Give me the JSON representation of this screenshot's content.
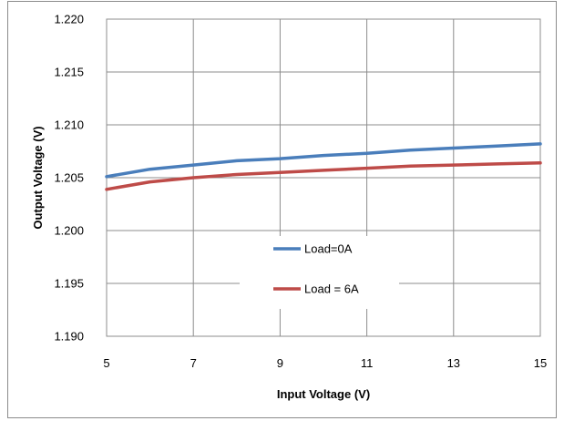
{
  "chart_data": {
    "type": "line",
    "xlabel": "Input Voltage (V)",
    "ylabel": "Output Voltage (V)",
    "xlim": [
      5,
      15
    ],
    "ylim": [
      1.19,
      1.22
    ],
    "x_ticks": [
      5,
      7,
      9,
      11,
      13,
      15
    ],
    "y_ticks": [
      1.19,
      1.195,
      1.2,
      1.205,
      1.21,
      1.215,
      1.22
    ],
    "x_tick_labels": [
      "5",
      "7",
      "9",
      "11",
      "13",
      "15"
    ],
    "y_tick_labels": [
      "1.190",
      "1.195",
      "1.200",
      "1.205",
      "1.210",
      "1.215",
      "1.220"
    ],
    "grid": true,
    "legend_position": "center",
    "series": [
      {
        "name": "Load=0A",
        "color": "#4a7ebb",
        "x": [
          5,
          6,
          7,
          8,
          9,
          10,
          11,
          12,
          13,
          14,
          15
        ],
        "y": [
          1.2051,
          1.2058,
          1.2062,
          1.2066,
          1.2068,
          1.2071,
          1.2073,
          1.2076,
          1.2078,
          1.208,
          1.2082
        ]
      },
      {
        "name": "Load = 6A",
        "color": "#be4b48",
        "x": [
          5,
          6,
          7,
          8,
          9,
          10,
          11,
          12,
          13,
          14,
          15
        ],
        "y": [
          1.2039,
          1.2046,
          1.205,
          1.2053,
          1.2055,
          1.2057,
          1.2059,
          1.2061,
          1.2062,
          1.2063,
          1.2064
        ]
      }
    ]
  }
}
